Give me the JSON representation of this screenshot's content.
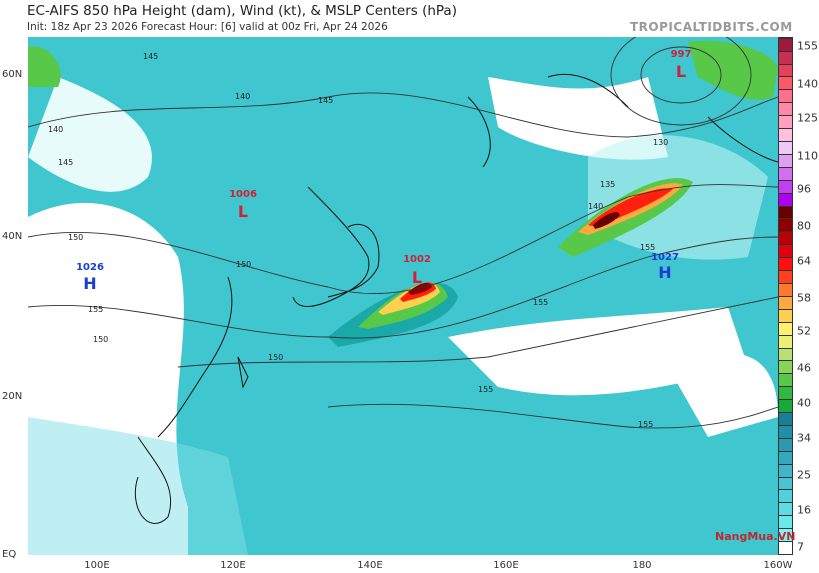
{
  "header": {
    "title": "EC-AIFS 850 hPa Height (dam), Wind (kt), & MSLP Centers (hPa)",
    "subtitle": "Init: 18z Apr 23 2026   Forecast Hour: [6]   valid at 00z Fri, Apr 24 2026",
    "brand": "TROPICALTIDBITS.COM"
  },
  "axes": {
    "lat_labels": [
      "60N",
      "40N",
      "20N",
      "EQ"
    ],
    "lon_labels": [
      "100E",
      "120E",
      "140E",
      "160E",
      "180",
      "160W"
    ]
  },
  "pressure_centers": [
    {
      "type": "L",
      "value": "997",
      "color": "#d0203a"
    },
    {
      "type": "L",
      "value": "1006",
      "color": "#d0203a"
    },
    {
      "type": "H",
      "value": "1026",
      "color": "#1a3fd0"
    },
    {
      "type": "L",
      "value": "1002",
      "color": "#d0203a"
    },
    {
      "type": "H",
      "value": "1027",
      "color": "#1a3fd0"
    }
  ],
  "contour_labels": [
    "145",
    "145",
    "140",
    "140",
    "145",
    "150",
    "150",
    "150",
    "150",
    "155",
    "155",
    "155",
    "155",
    "130",
    "135",
    "140",
    "155"
  ],
  "colorbar": {
    "labels": [
      "155",
      "140",
      "125",
      "110",
      "96",
      "80",
      "64",
      "58",
      "52",
      "46",
      "40",
      "34",
      "25",
      "16",
      "7"
    ],
    "colors": [
      "#ffffff",
      "#7ff4f4",
      "#6ae8ec",
      "#5ddce4",
      "#52d0dc",
      "#48c4d2",
      "#3eb6c8",
      "#34a8bc",
      "#2b9ab0",
      "#2090a4",
      "#158098",
      "#1aa83a",
      "#30b840",
      "#58c848",
      "#88d458",
      "#b8e070",
      "#e8f078",
      "#fff070",
      "#ffd050",
      "#ffa840",
      "#ff7830",
      "#ff4020",
      "#ff1010",
      "#e00010",
      "#b80008",
      "#900000",
      "#680000",
      "#b000f0",
      "#c040f0",
      "#d070f0",
      "#e0a0f0",
      "#f0c8f8",
      "#ffc0e0",
      "#ffa0c0",
      "#ff88a8",
      "#ff7090",
      "#ff5868",
      "#e84058",
      "#c83050",
      "#a01840"
    ]
  },
  "watermark": "NangMua.VN"
}
